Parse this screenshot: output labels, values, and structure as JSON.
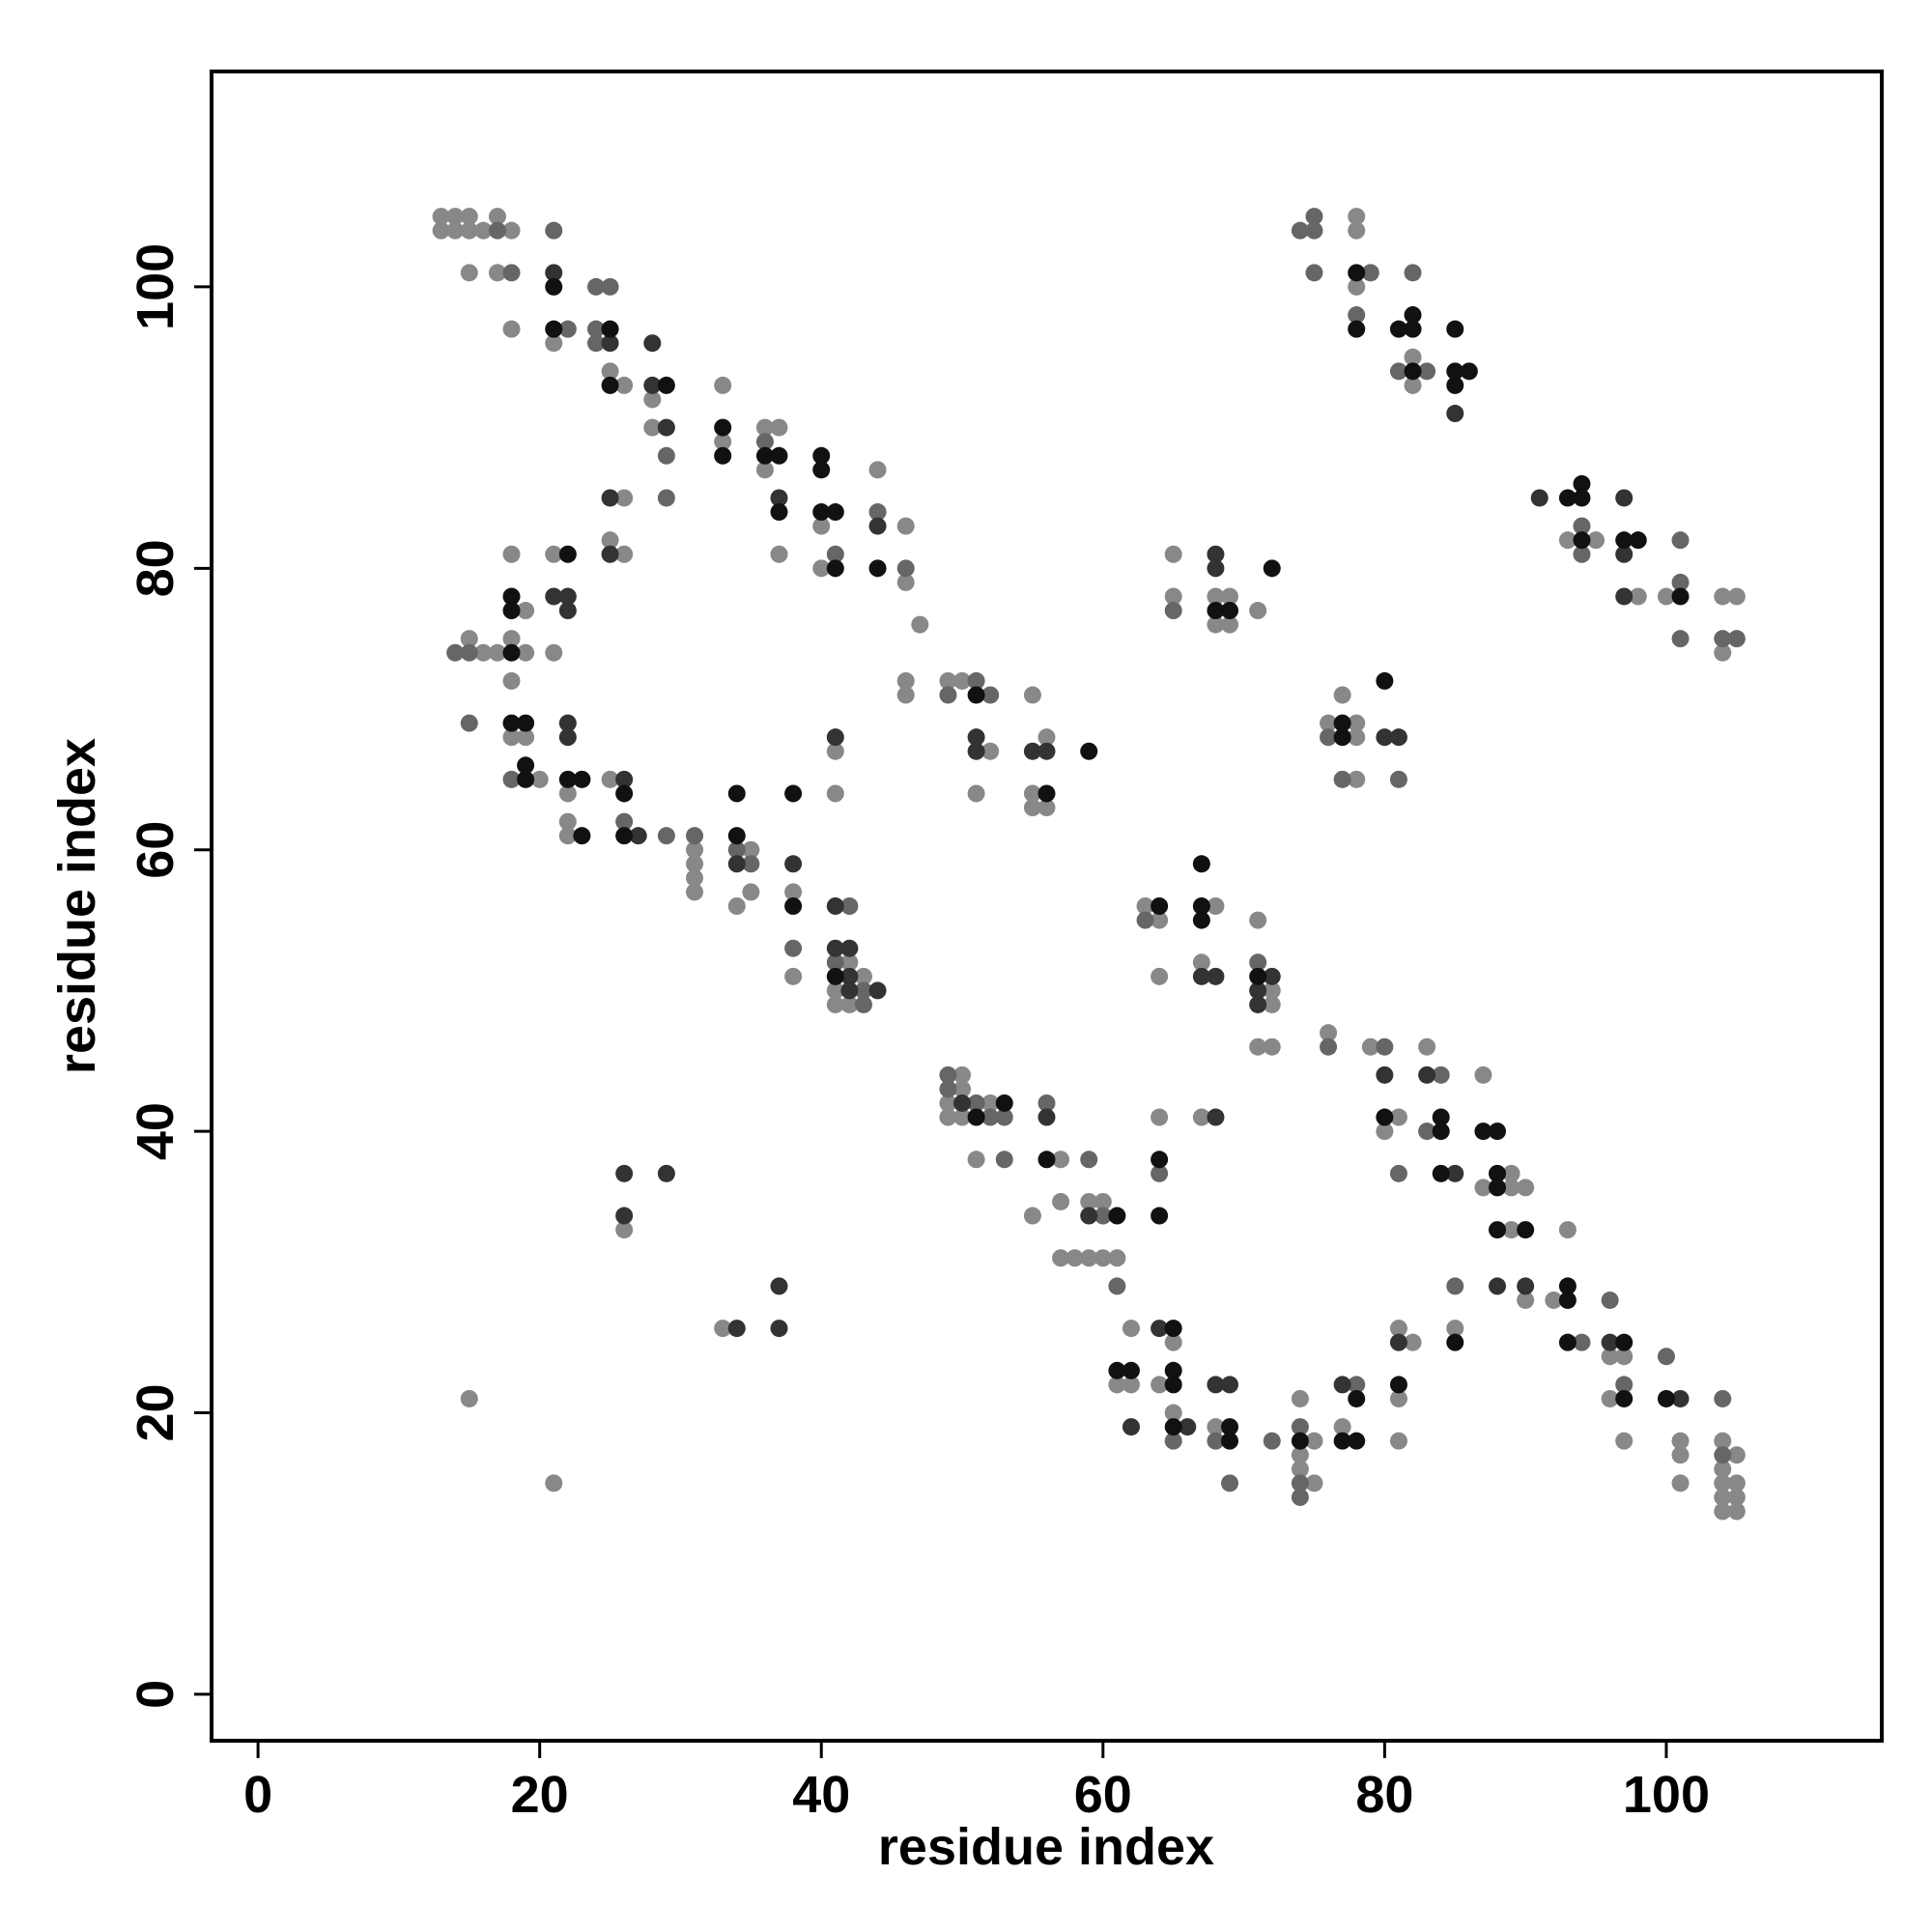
{
  "chart_data": {
    "type": "scatter",
    "xlabel": "residue index",
    "ylabel": "residue index",
    "xlim": [
      -3.3,
      115.3
    ],
    "ylim": [
      -3.3,
      115.3
    ],
    "xticks": [
      0,
      20,
      40,
      60,
      80,
      100
    ],
    "yticks": [
      0,
      20,
      40,
      60,
      80,
      100
    ],
    "series": [
      {
        "color": "#888888",
        "x": [
          13,
          14,
          15,
          17,
          13,
          14,
          15,
          16,
          18,
          15,
          17,
          18,
          21,
          25,
          26,
          33,
          28,
          28,
          36,
          37,
          33,
          36,
          44,
          26,
          46,
          40,
          25,
          18,
          21,
          26,
          37,
          40,
          46,
          19,
          47,
          15,
          18,
          16,
          17,
          19,
          21,
          18,
          46,
          49,
          50,
          46,
          55,
          18,
          19,
          56,
          41,
          52,
          20,
          25,
          22,
          41,
          51,
          55,
          55,
          56,
          22,
          22,
          31,
          35,
          31,
          31,
          31,
          35,
          38,
          34,
          68,
          63,
          64,
          71,
          42,
          67,
          38,
          43,
          64,
          41,
          72,
          41,
          42,
          72,
          76,
          71,
          72,
          79,
          83,
          50,
          87,
          50,
          49,
          52,
          49,
          50,
          64,
          67,
          81,
          80,
          51,
          57,
          89,
          87,
          89,
          90,
          57,
          59,
          60,
          55,
          26,
          89,
          93,
          57,
          58,
          59,
          60,
          61,
          90,
          92,
          33,
          62,
          81,
          85,
          65,
          82,
          96,
          97,
          61,
          62,
          64,
          15,
          74,
          81,
          96,
          65,
          68,
          77,
          75,
          81,
          97,
          101,
          104,
          74,
          101,
          105,
          74,
          104,
          21,
          75,
          101,
          104,
          105,
          104,
          105,
          104,
          105,
          78,
          78,
          78,
          82,
          82,
          93,
          95,
          98,
          100,
          104,
          105,
          104,
          65,
          65,
          68,
          69,
          71,
          68,
          69,
          77,
          76,
          78,
          78,
          78
        ],
        "values": [
          105,
          105,
          105,
          105,
          104,
          104,
          104,
          104,
          104,
          101,
          101,
          97,
          96,
          94,
          93,
          93,
          92,
          90,
          90,
          90,
          89,
          87,
          87,
          85,
          83,
          83,
          82,
          81,
          81,
          81,
          81,
          80,
          79,
          77,
          76,
          75,
          75,
          74,
          74,
          74,
          74,
          72,
          72,
          72,
          72,
          71,
          71,
          68,
          68,
          68,
          67,
          67,
          65,
          65,
          64,
          64,
          64,
          64,
          63,
          63,
          62,
          61,
          60,
          60,
          59,
          58,
          57,
          57,
          57,
          56,
          56,
          56,
          55,
          55,
          52,
          52,
          51,
          51,
          51,
          50,
          50,
          49,
          49,
          49,
          47,
          46,
          46,
          46,
          46,
          44,
          44,
          43,
          42,
          42,
          41,
          41,
          41,
          41,
          41,
          40,
          38,
          38,
          37,
          36,
          36,
          36,
          35,
          35,
          35,
          34,
          33,
          33,
          33,
          31,
          31,
          31,
          31,
          31,
          28,
          28,
          26,
          26,
          26,
          26,
          25,
          25,
          24,
          24,
          22,
          22,
          22,
          21,
          21,
          21,
          21,
          20,
          19,
          19,
          18,
          18,
          18,
          18,
          18,
          17,
          17,
          17,
          16,
          16,
          15,
          15,
          15,
          15,
          15,
          14,
          14,
          13,
          13,
          105,
          104,
          100,
          95,
          93,
          82,
          82,
          78,
          78,
          78,
          78,
          74,
          81,
          78,
          78,
          78,
          77,
          76,
          76,
          71,
          69,
          69,
          68,
          65
        ]
      },
      {
        "color": "#666666",
        "x": [
          17,
          21,
          18,
          24,
          25,
          22,
          24,
          24,
          29,
          36,
          29,
          44,
          41,
          46,
          14,
          15,
          15,
          51,
          49,
          52,
          18,
          26,
          29,
          31,
          34,
          35,
          42,
          63,
          38,
          41,
          71,
          43,
          43,
          76,
          80,
          84,
          49,
          49,
          51,
          56,
          52,
          53,
          83,
          53,
          59,
          64,
          81,
          60,
          61,
          85,
          96,
          94,
          100,
          78,
          97,
          104,
          65,
          68,
          72,
          74,
          104,
          69,
          74,
          74,
          75,
          74,
          75,
          75,
          79,
          82,
          78,
          81,
          83,
          94,
          101,
          94,
          101,
          101,
          104,
          105,
          65,
          76,
          77,
          81
        ],
        "values": [
          104,
          104,
          101,
          100,
          100,
          97,
          97,
          96,
          88,
          89,
          85,
          84,
          81,
          80,
          74,
          74,
          69,
          72,
          71,
          71,
          65,
          62,
          61,
          61,
          60,
          59,
          56,
          55,
          53,
          52,
          52,
          50,
          49,
          46,
          46,
          44,
          44,
          43,
          42,
          42,
          41,
          41,
          40,
          38,
          38,
          37,
          37,
          34,
          29,
          29,
          28,
          25,
          24,
          22,
          22,
          21,
          18,
          18,
          18,
          19,
          17,
          15,
          15,
          14,
          105,
          104,
          104,
          101,
          101,
          101,
          98,
          94,
          94,
          83,
          82,
          81,
          79,
          75,
          75,
          75,
          77,
          68,
          65,
          65
        ]
      },
      {
        "color": "#333333",
        "x": [
          21,
          25,
          28,
          28,
          29,
          25,
          37,
          44,
          25,
          21,
          22,
          22,
          22,
          22,
          41,
          51,
          51,
          55,
          56,
          26,
          27,
          34,
          38,
          41,
          41,
          42,
          42,
          67,
          68,
          72,
          42,
          44,
          71,
          71,
          80,
          83,
          50,
          56,
          68,
          26,
          29,
          85,
          26,
          59,
          37,
          88,
          90,
          34,
          37,
          64,
          81,
          96,
          68,
          69,
          77,
          101,
          62,
          66,
          85,
          91,
          97,
          97,
          97,
          68,
          68,
          80,
          81
        ],
        "values": [
          101,
          96,
          96,
          93,
          90,
          85,
          85,
          83,
          81,
          78,
          78,
          77,
          69,
          68,
          68,
          68,
          67,
          67,
          67,
          65,
          61,
          59,
          59,
          56,
          53,
          53,
          51,
          51,
          51,
          51,
          50,
          50,
          50,
          49,
          44,
          44,
          42,
          41,
          41,
          37,
          37,
          37,
          34,
          34,
          29,
          29,
          29,
          26,
          26,
          26,
          25,
          25,
          22,
          22,
          22,
          21,
          19,
          19,
          91,
          85,
          85,
          81,
          78,
          81,
          80,
          68,
          68
        ]
      },
      {
        "color": "#111111",
        "x": [
          21,
          21,
          25,
          25,
          29,
          33,
          33,
          36,
          37,
          40,
          40,
          37,
          40,
          41,
          22,
          41,
          44,
          18,
          18,
          18,
          51,
          18,
          19,
          59,
          19,
          19,
          22,
          23,
          26,
          34,
          38,
          56,
          23,
          26,
          34,
          67,
          38,
          64,
          67,
          67,
          41,
          71,
          53,
          51,
          80,
          84,
          84,
          87,
          88,
          56,
          64,
          84,
          88,
          88,
          61,
          64,
          88,
          90,
          93,
          93,
          65,
          85,
          93,
          97,
          61,
          62,
          65,
          65,
          81,
          78,
          97,
          100,
          65,
          69,
          69,
          74,
          77,
          78,
          78,
          82,
          78,
          81,
          82,
          85,
          82,
          85,
          86,
          85,
          94,
          93,
          94,
          94,
          97,
          98,
          101,
          72,
          68,
          69,
          80,
          77,
          77
        ],
        "values": [
          100,
          97,
          97,
          93,
          93,
          90,
          88,
          88,
          88,
          88,
          87,
          84,
          84,
          84,
          81,
          80,
          80,
          78,
          77,
          74,
          71,
          69,
          69,
          67,
          66,
          65,
          65,
          65,
          64,
          64,
          64,
          64,
          61,
          61,
          61,
          59,
          56,
          56,
          56,
          55,
          51,
          51,
          42,
          41,
          41,
          41,
          40,
          40,
          40,
          38,
          38,
          37,
          37,
          36,
          34,
          34,
          33,
          33,
          29,
          28,
          26,
          25,
          25,
          25,
          23,
          23,
          23,
          22,
          22,
          21,
          21,
          21,
          19,
          19,
          18,
          18,
          18,
          18,
          101,
          98,
          97,
          97,
          97,
          97,
          94,
          94,
          94,
          93,
          86,
          85,
          85,
          82,
          82,
          82,
          78,
          80,
          77,
          77,
          72,
          69,
          68
        ]
      }
    ]
  }
}
